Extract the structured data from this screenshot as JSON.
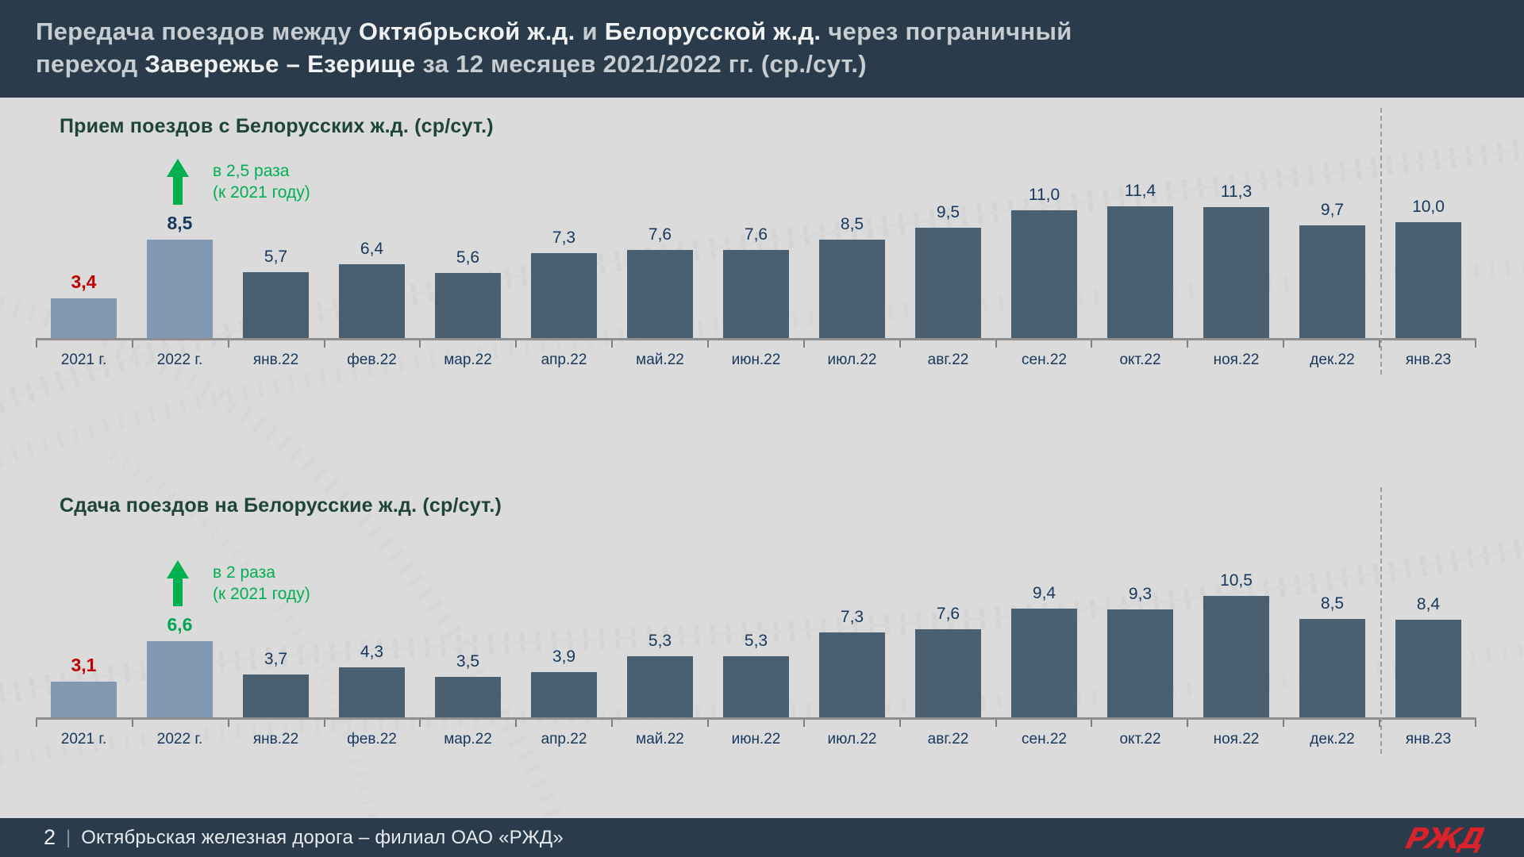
{
  "header": {
    "title_segments": [
      {
        "text": "Передача поездов между "
      },
      {
        "text": "Октябрьской ж.д.",
        "em": true
      },
      {
        "text": " и "
      },
      {
        "text": "Белорусской ж.д.",
        "em": true
      },
      {
        "text": " через пограничный",
        "br": true
      },
      {
        "text": "переход "
      },
      {
        "text": "Завережье – Езерище",
        "em": true
      },
      {
        "text": " за 12 месяцев 2021/2022 гг. (ср./сут.)"
      }
    ]
  },
  "chart_data": [
    {
      "type": "bar",
      "title": "Прием поездов с Белорусских ж.д.  (ср/сут.)",
      "categories": [
        "2021 г.",
        "2022 г.",
        "янв.22",
        "фев.22",
        "мар.22",
        "апр.22",
        "май.22",
        "июн.22",
        "июл.22",
        "авг.22",
        "сен.22",
        "окт.22",
        "ноя.22",
        "дек.22",
        "янв.23"
      ],
      "values": [
        3.4,
        8.5,
        5.7,
        6.4,
        5.6,
        7.3,
        7.6,
        7.6,
        8.5,
        9.5,
        11.0,
        11.4,
        11.3,
        9.7,
        10.0
      ],
      "labels": [
        "3,4",
        "8,5",
        "5,7",
        "6,4",
        "5,6",
        "7,3",
        "7,6",
        "7,6",
        "8,5",
        "9,5",
        "11,0",
        "11,4",
        "11,3",
        "9,7",
        "10,0"
      ],
      "ylim": [
        0,
        12
      ],
      "grid": false,
      "legend": "none",
      "light_bars": [
        0,
        1
      ],
      "label_colors": {
        "0": "#C00000",
        "1": "#17375E"
      },
      "annotation": {
        "icon": "up-arrow",
        "line1": "в 2,5 раза",
        "line2": "(к 2021 году)"
      },
      "divider_between": [
        "дек.22",
        "янв.23"
      ]
    },
    {
      "type": "bar",
      "title": "Сдача поездов на Белорусские ж.д. (ср/сут.)",
      "categories": [
        "2021 г.",
        "2022 г.",
        "янв.22",
        "фев.22",
        "мар.22",
        "апр.22",
        "май.22",
        "июн.22",
        "июл.22",
        "авг.22",
        "сен.22",
        "окт.22",
        "ноя.22",
        "дек.22",
        "янв.23"
      ],
      "values": [
        3.1,
        6.6,
        3.7,
        4.3,
        3.5,
        3.9,
        5.3,
        5.3,
        7.3,
        7.6,
        9.4,
        9.3,
        10.5,
        8.5,
        8.4
      ],
      "labels": [
        "3,1",
        "6,6",
        "3,7",
        "4,3",
        "3,5",
        "3,9",
        "5,3",
        "5,3",
        "7,3",
        "7,6",
        "9,4",
        "9,3",
        "10,5",
        "8,5",
        "8,4"
      ],
      "ylim": [
        0,
        12
      ],
      "grid": false,
      "legend": "none",
      "light_bars": [
        0,
        1
      ],
      "label_colors": {
        "0": "#C00000",
        "1": "#00A651"
      },
      "annotation": {
        "icon": "up-arrow",
        "line1": "в 2 раза",
        "line2": "(к 2021 году)"
      },
      "divider_between": [
        "дек.22",
        "янв.23"
      ]
    }
  ],
  "footer": {
    "page_number": "2",
    "separator": "|",
    "text": "Октябрьская железная дорога – филиал ОАО «РЖД»",
    "logo_text": "РЖД"
  },
  "colors": {
    "header_bg": "#2A3B4B",
    "body_bg": "#DBDBDB",
    "bar_light": "#8299B3",
    "bar_dark": "#4A5F70",
    "value_navy": "#17375E",
    "value_red": "#C00000",
    "green": "#00B050",
    "chart_title": "#1E4535",
    "axis": "#8F8F8F",
    "logo_red": "#D9222A"
  }
}
